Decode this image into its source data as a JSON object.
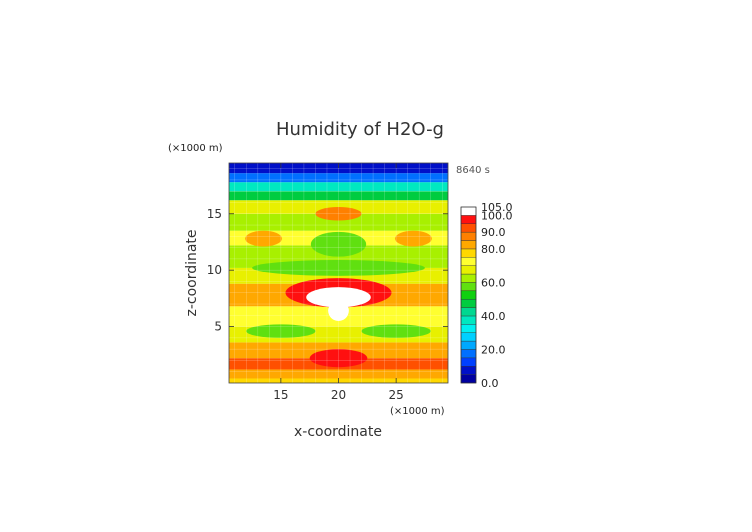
{
  "chart_data": {
    "type": "heatmap",
    "title": "Humidity of H2O-g",
    "xlabel": "x-coordinate",
    "ylabel": "z-coordinate",
    "x_unit": "(×1000 m)",
    "y_unit": "(×1000 m)",
    "time_label": "8640 s",
    "xlim": [
      10.5,
      29.5
    ],
    "ylim": [
      0,
      19.5
    ],
    "x_ticks": [
      "15",
      "20",
      "25"
    ],
    "y_ticks": [
      "5",
      "10",
      "15"
    ],
    "colorbar": {
      "levels": [
        0,
        5,
        10,
        15,
        20,
        25,
        30,
        35,
        40,
        45,
        50,
        55,
        60,
        65,
        70,
        75,
        80,
        85,
        90,
        95,
        100,
        105
      ],
      "colors": [
        "#0000a0",
        "#0010c8",
        "#0040ff",
        "#0070ff",
        "#00a8ff",
        "#00d0ff",
        "#00f0f0",
        "#00e8c0",
        "#00d890",
        "#00cc40",
        "#10d010",
        "#60e010",
        "#a8f000",
        "#e8f000",
        "#ffff30",
        "#ffd800",
        "#ffa800",
        "#ff8000",
        "#ff5000",
        "#ff1010",
        "#ffffff"
      ],
      "labels": [
        "0.0",
        "20.0",
        "40.0",
        "60.0",
        "80.0",
        "90.0",
        "100.0",
        "105.0"
      ]
    },
    "field_description_bands": [
      {
        "z": [
          0.0,
          0.4
        ],
        "value": 77
      },
      {
        "z": [
          0.4,
          1.2
        ],
        "value": 82
      },
      {
        "z": [
          1.2,
          2.2
        ],
        "value": 90
      },
      {
        "z": [
          2.2,
          3.6
        ],
        "value": 80
      },
      {
        "z": [
          3.6,
          5.0
        ],
        "value": 68
      },
      {
        "z": [
          5.0,
          6.8
        ],
        "value": 72
      },
      {
        "z": [
          6.8,
          8.8
        ],
        "value": 84
      },
      {
        "z": [
          8.8,
          10.2
        ],
        "value": 66
      },
      {
        "z": [
          10.2,
          12.2
        ],
        "value": 64
      },
      {
        "z": [
          12.2,
          13.5
        ],
        "value": 70
      },
      {
        "z": [
          13.5,
          15.0
        ],
        "value": 62
      },
      {
        "z": [
          15.0,
          16.2
        ],
        "value": 66
      },
      {
        "z": [
          16.2,
          17.0
        ],
        "value": 48
      },
      {
        "z": [
          17.0,
          17.8
        ],
        "value": 38
      },
      {
        "z": [
          17.8,
          18.6
        ],
        "value": 18
      },
      {
        "z": [
          18.6,
          19.5
        ],
        "value": 6
      }
    ],
    "features": [
      {
        "shape": "ellipse",
        "cx": 20.0,
        "cz": 8.0,
        "rx": 4.6,
        "rz": 1.3,
        "value": 95
      },
      {
        "shape": "ellipse",
        "cx": 20.0,
        "cz": 7.6,
        "rx": 2.8,
        "rz": 0.9,
        "value": 102
      },
      {
        "shape": "ellipse",
        "cx": 20.0,
        "cz": 6.4,
        "rx": 0.9,
        "rz": 0.9,
        "value": 102
      },
      {
        "shape": "ellipse",
        "cx": 20.0,
        "cz": 2.2,
        "rx": 2.5,
        "rz": 0.8,
        "value": 96
      },
      {
        "shape": "ellipse",
        "cx": 20.0,
        "cz": 15.0,
        "rx": 2.0,
        "rz": 0.6,
        "value": 87
      },
      {
        "shape": "ellipse",
        "cx": 20.0,
        "cz": 12.3,
        "rx": 2.4,
        "rz": 1.1,
        "value": 58
      },
      {
        "shape": "ellipse",
        "cx": 13.5,
        "cz": 12.8,
        "rx": 1.6,
        "rz": 0.7,
        "value": 80
      },
      {
        "shape": "ellipse",
        "cx": 26.5,
        "cz": 12.8,
        "rx": 1.6,
        "rz": 0.7,
        "value": 80
      },
      {
        "shape": "ellipse",
        "cx": 20.0,
        "cz": 10.2,
        "rx": 7.5,
        "rz": 0.7,
        "value": 58
      },
      {
        "shape": "ellipse",
        "cx": 15.0,
        "cz": 4.6,
        "rx": 3.0,
        "rz": 0.6,
        "value": 58
      },
      {
        "shape": "ellipse",
        "cx": 25.0,
        "cz": 4.6,
        "rx": 3.0,
        "rz": 0.6,
        "value": 58
      }
    ]
  }
}
